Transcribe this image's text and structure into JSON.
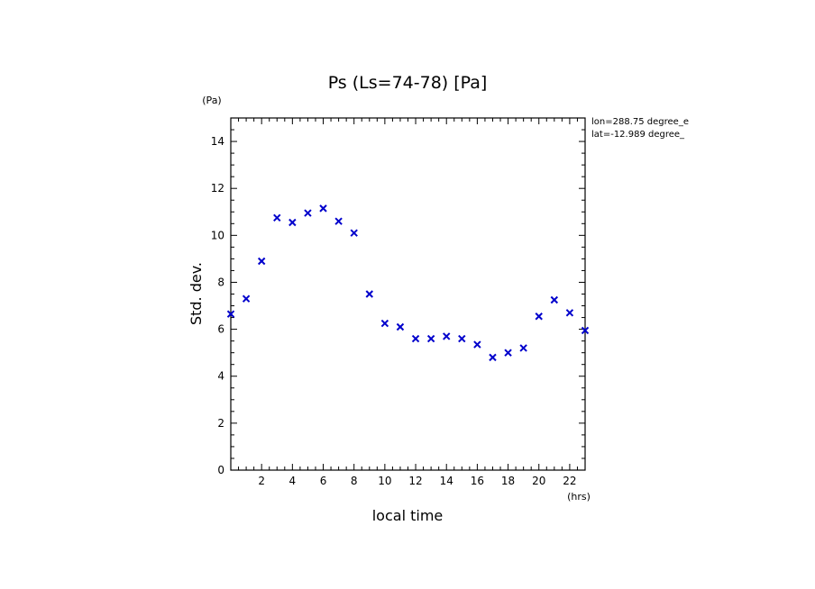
{
  "chart_data": {
    "type": "scatter",
    "title": "Ps (Ls=74-78) [Pa]",
    "xlabel": "local time",
    "ylabel": "Std. dev.",
    "x_unit": "(hrs)",
    "y_unit": "(Pa)",
    "xlim": [
      0,
      23
    ],
    "ylim": [
      0,
      15
    ],
    "x_ticks": [
      2,
      4,
      6,
      8,
      10,
      12,
      14,
      16,
      18,
      20,
      22
    ],
    "y_ticks": [
      0,
      2,
      4,
      6,
      8,
      10,
      12,
      14
    ],
    "grid": false,
    "marker": "x",
    "marker_color": "#0000cc",
    "annotations": [
      "lon=288.75 degree_e",
      "lat=-12.989 degree_"
    ],
    "series": [
      {
        "x": [
          0,
          1,
          2,
          3,
          4,
          5,
          6,
          7,
          8,
          9,
          10,
          11,
          12,
          13,
          14,
          15,
          16,
          17,
          18,
          19,
          20,
          21,
          22,
          23
        ],
        "y": [
          6.65,
          7.3,
          8.9,
          10.75,
          10.55,
          10.95,
          11.15,
          10.6,
          10.1,
          7.5,
          6.25,
          6.1,
          5.6,
          5.6,
          5.7,
          5.6,
          5.35,
          4.8,
          5.0,
          5.2,
          6.55,
          7.25,
          6.7,
          5.95
        ]
      }
    ]
  }
}
